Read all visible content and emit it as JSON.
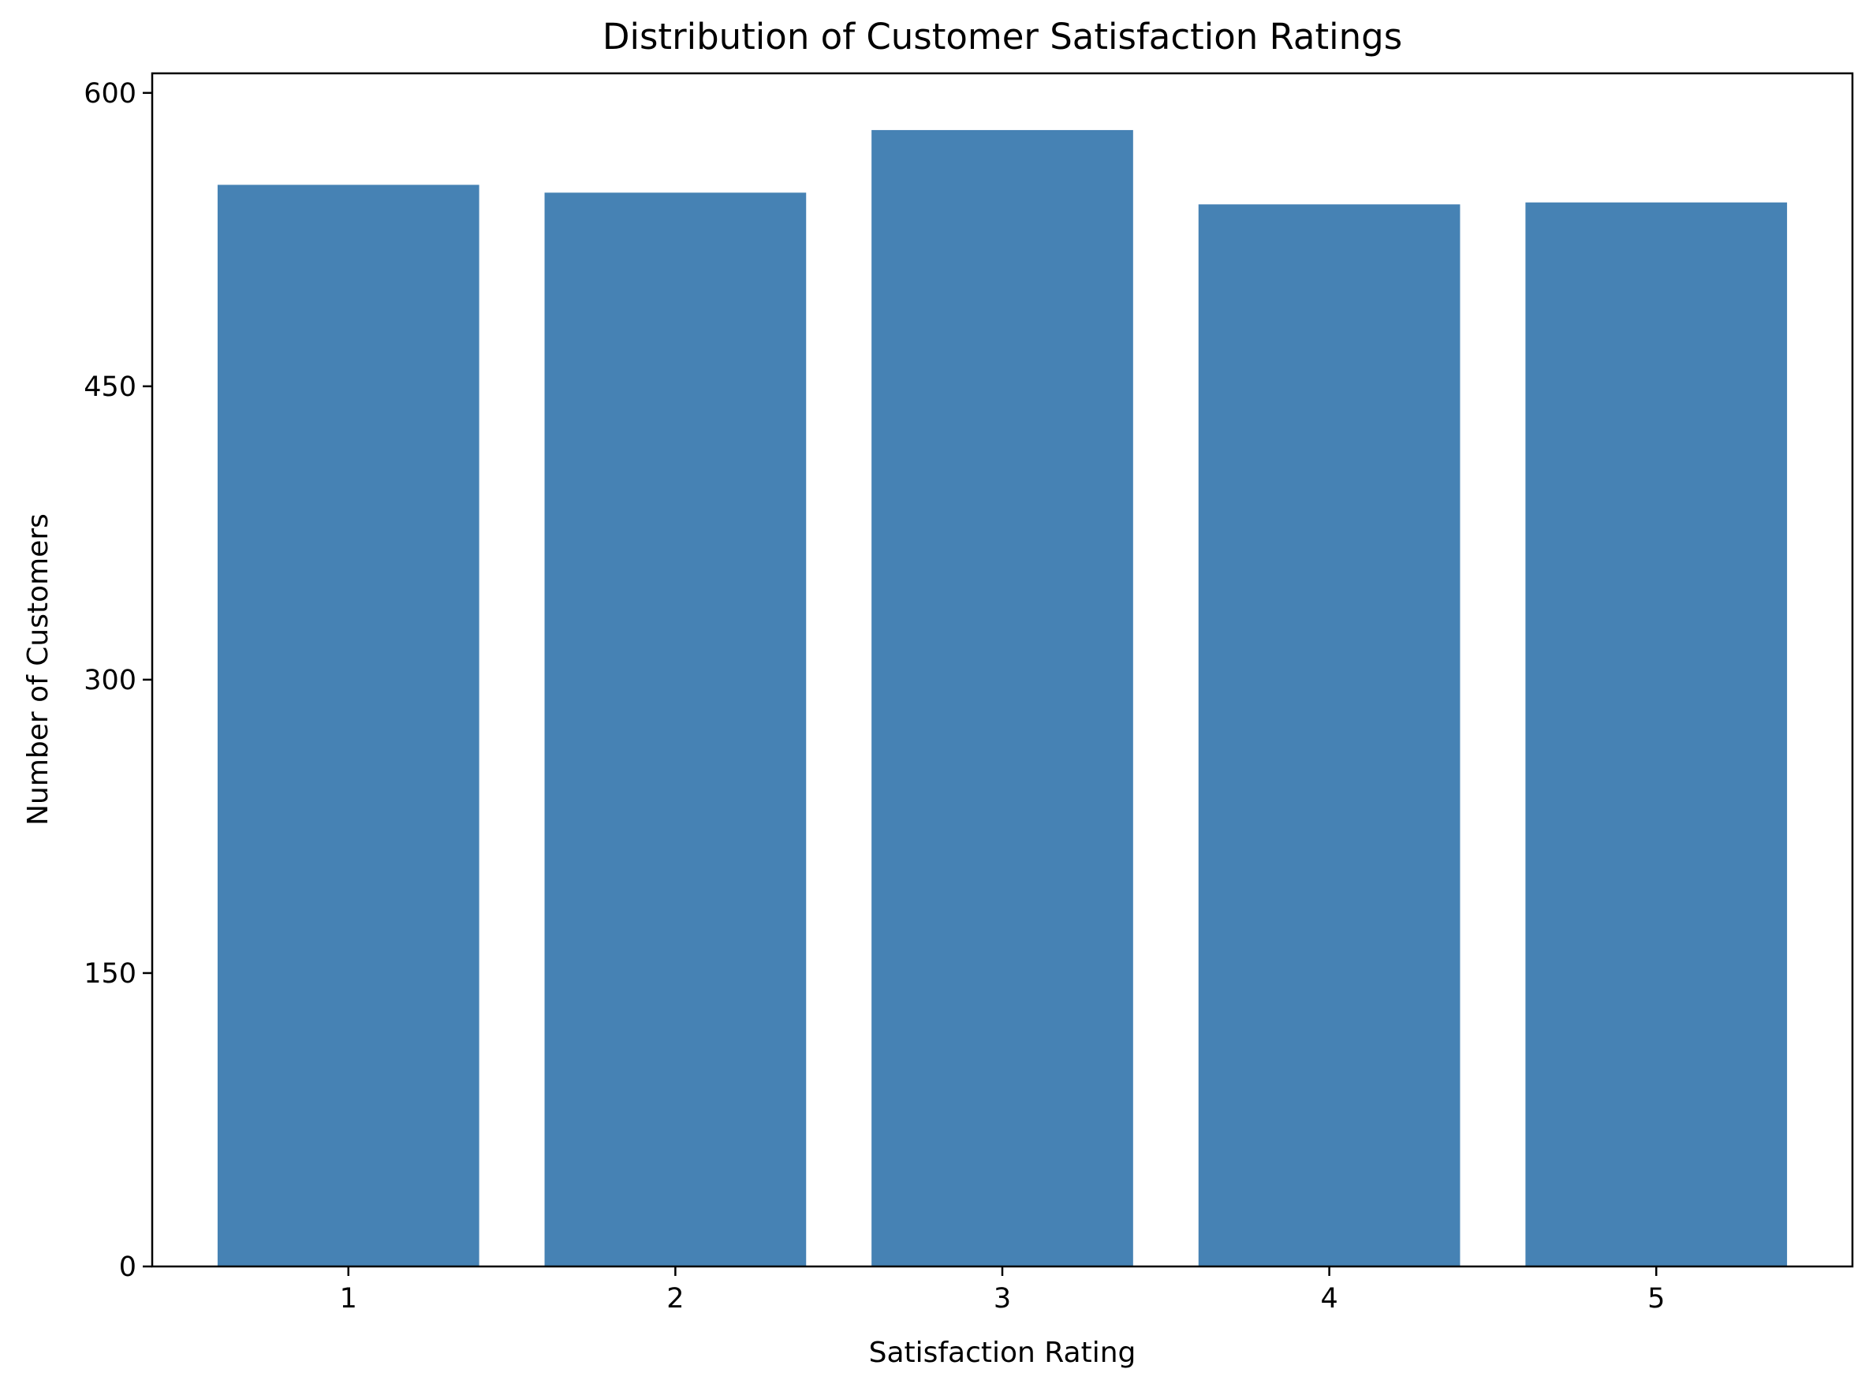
{
  "chart_data": {
    "type": "bar",
    "title": "Distribution of Customer Satisfaction Ratings",
    "xlabel": "Satisfaction Rating",
    "ylabel": "Number of Customers",
    "categories": [
      "1",
      "2",
      "3",
      "4",
      "5"
    ],
    "values": [
      553,
      549,
      581,
      543,
      544
    ],
    "ylim": [
      0,
      610
    ],
    "yticks": [
      0,
      150,
      300,
      450,
      600
    ],
    "grid": false,
    "legend": "none",
    "bar_color": "#4682b4"
  }
}
